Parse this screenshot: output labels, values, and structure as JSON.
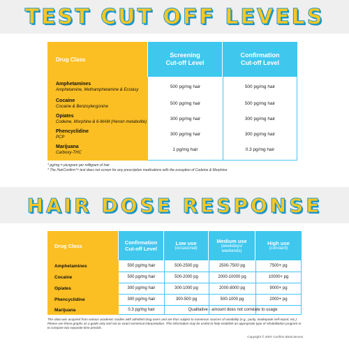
{
  "section1": {
    "title": "TEST CUT OFF LEVELS",
    "headers": {
      "drug_class": "Drug Class",
      "screening_line1": "Screening",
      "screening_line2": "Cut-off Level",
      "confirmation_line1": "Confirmation",
      "confirmation_line2": "Cut-off Level"
    },
    "rows": [
      {
        "drug": "Amphetamines",
        "sub": "Amphetamine, Methamphetamine & Ecstasy",
        "screening": "500 pg/mg hair",
        "confirmation": "500 pg/mg hair"
      },
      {
        "drug": "Cocaine",
        "sub": "Cocaine & Benzoylecgonine",
        "screening": "500 pg/mg hair",
        "confirmation": "500 pg/mg hair"
      },
      {
        "drug": "Opiates",
        "sub": "Codeine, Morphine & 6-MAM (Heroin metabolite)",
        "screening": "300 pg/mg hair",
        "confirmation": "300 pg/mg hair"
      },
      {
        "drug": "Phencyclidine",
        "sub": "PCP",
        "screening": "300 pg/mg hair",
        "confirmation": "300 pg/mg hair"
      },
      {
        "drug": "Marijuana",
        "sub": "Carboxy-THC",
        "screening": "1 pg/mg hair",
        "confirmation": "0.3 pg/mg hair"
      }
    ],
    "note1": "* pg/mg = picogram per milligram of hair",
    "note2": "* The HairConfirm™ test does not screen for any prescription medications with the exception of Codeine & Morphine"
  },
  "section2": {
    "title": "HAIR DOSE RESPONSE",
    "headers": {
      "drug_class": "Drug Class",
      "conf_line1": "Confirmation",
      "conf_line2": "Cut-off Level",
      "low": "Low use",
      "low_sub": "(occasional)",
      "medium": "Medium use",
      "medium_sub1": "(weekdays/",
      "medium_sub2": "weekends)",
      "high": "High use",
      "high_sub": "(constant)"
    },
    "rows": [
      {
        "drug": "Amphetamines",
        "cutoff": "500 pg/mg hair",
        "low": "500-2500 pg",
        "medium": "2500-7500 pg",
        "high": "7500+ pg"
      },
      {
        "drug": "Cocaine",
        "cutoff": "500 pg/mg hair",
        "low": "500-2000 pg",
        "medium": "2000-10000 pg",
        "high": "10000+ pg"
      },
      {
        "drug": "Opiates",
        "cutoff": "300 pg/mg hair",
        "low": "300-1000 pg",
        "medium": "2000-8000 pg",
        "high": "9000+ pg"
      },
      {
        "drug": "Phencyclidine",
        "cutoff": "300 pg/mg hair",
        "low": "300-500 pg",
        "medium": "500-1000 pg",
        "high": "2000+ pg"
      }
    ],
    "marijuana": {
      "drug": "Marijuana",
      "cutoff": "0.3 pg/mg hair",
      "qualitative": "Qualitative - amount does not correlate to usage"
    },
    "footnote": "This data was acquired from various academic studies with admitted drug users and are thus subject to numerous sources of variability (e.g., purity, inadequate self-report, etc.). Please use these graphs as a guide only and not as exact numerical interpretation. This information may be useful to help establish an appropriate type of rehabilitation program or to compare two separate time periods.",
    "copyright": "Copyright © 2007 Confirm BioSciences"
  },
  "colors": {
    "accent_blue": "#3fc7ee",
    "accent_yellow": "#fcbf23",
    "title_outline": "#1d97c9"
  }
}
